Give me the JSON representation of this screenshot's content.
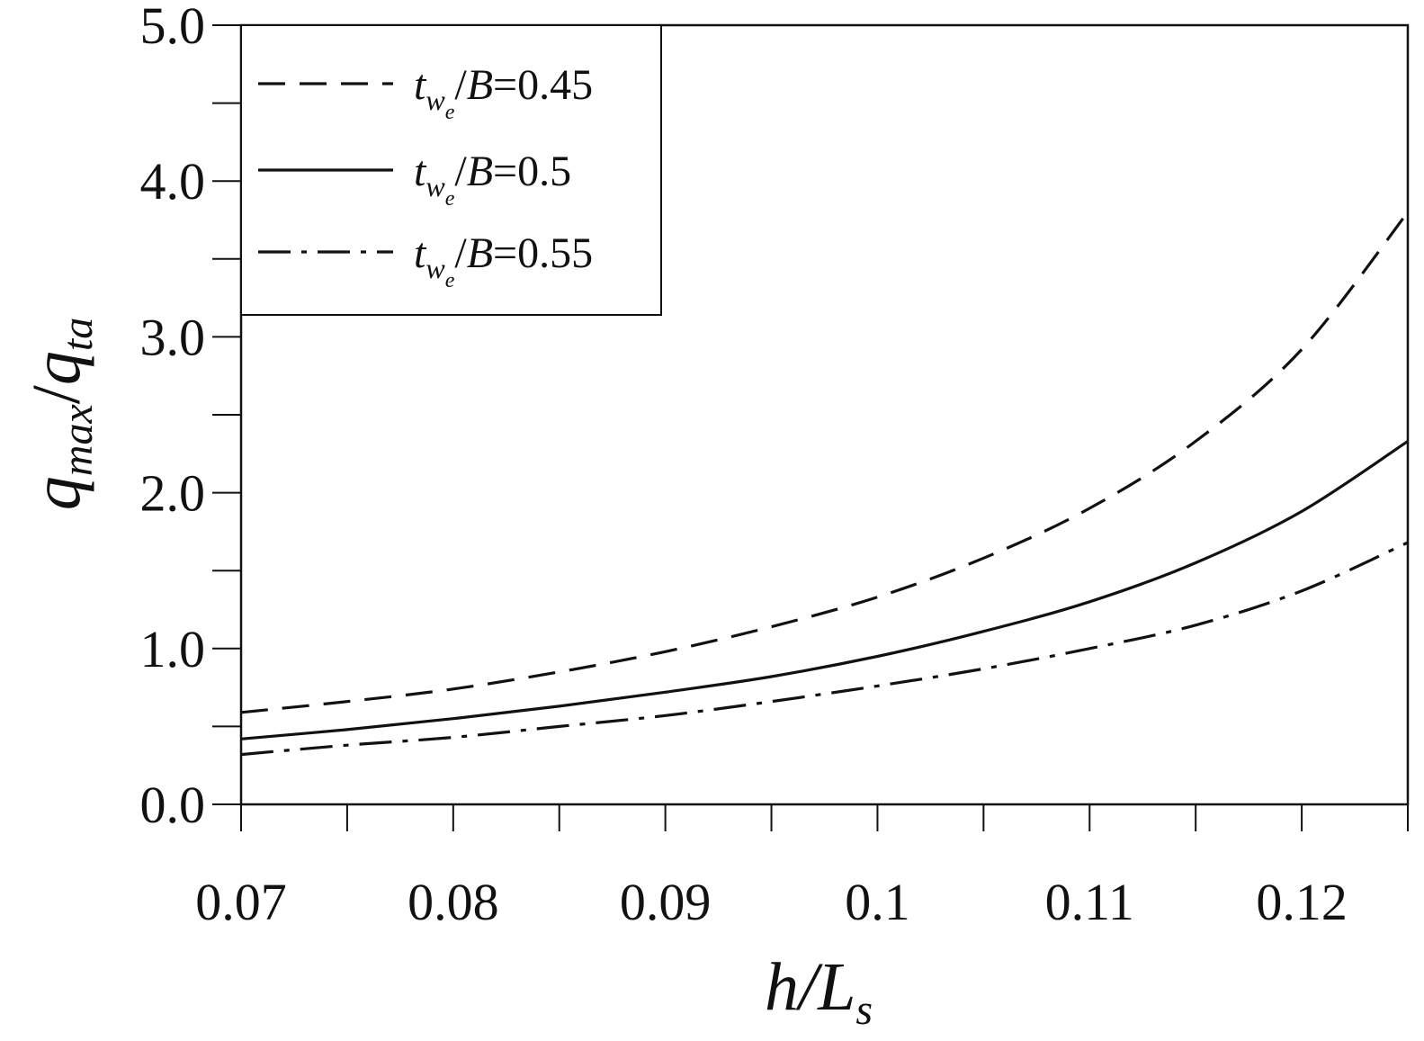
{
  "chart_data": {
    "type": "line",
    "title": "",
    "xlabel": {
      "base": "h/L",
      "sub": "s"
    },
    "ylabel": {
      "q1": "q",
      "sub1": "max",
      "slash": "/",
      "q2": "q",
      "sub2": "ta"
    },
    "xlim": [
      0.07,
      0.125
    ],
    "ylim": [
      0,
      5
    ],
    "x_ticks": [
      "0.07",
      "0.08",
      "0.09",
      "0.1",
      "0.11",
      "0.12"
    ],
    "y_ticks": [
      "0.0",
      "1.0",
      "2.0",
      "3.0",
      "4.0",
      "5.0"
    ],
    "grid": false,
    "legend_position": "top-left",
    "x": [
      0.07,
      0.075,
      0.08,
      0.085,
      0.09,
      0.095,
      0.1,
      0.105,
      0.11,
      0.115,
      0.12,
      0.125
    ],
    "series": [
      {
        "name": "t_we/B=0.45",
        "legend": {
          "t": "t",
          "w": "w",
          "e": "e",
          "rest": "/",
          "B": "B",
          "value": "=0.45"
        },
        "dash": "dashed",
        "values": [
          0.59,
          0.66,
          0.74,
          0.85,
          0.98,
          1.14,
          1.33,
          1.58,
          1.9,
          2.33,
          2.92,
          3.8
        ]
      },
      {
        "name": "t_we/B=0.5",
        "legend": {
          "t": "t",
          "w": "w",
          "e": "e",
          "rest": "/",
          "B": "B",
          "value": "=0.5"
        },
        "dash": "solid",
        "values": [
          0.42,
          0.48,
          0.55,
          0.63,
          0.72,
          0.82,
          0.95,
          1.11,
          1.3,
          1.55,
          1.88,
          2.33
        ]
      },
      {
        "name": "t_we/B=0.55",
        "legend": {
          "t": "t",
          "w": "w",
          "e": "e",
          "rest": "/",
          "B": "B",
          "value": "=0.55"
        },
        "dash": "dashdot",
        "values": [
          0.32,
          0.38,
          0.43,
          0.5,
          0.57,
          0.66,
          0.76,
          0.87,
          1.0,
          1.15,
          1.37,
          1.68
        ]
      }
    ]
  }
}
